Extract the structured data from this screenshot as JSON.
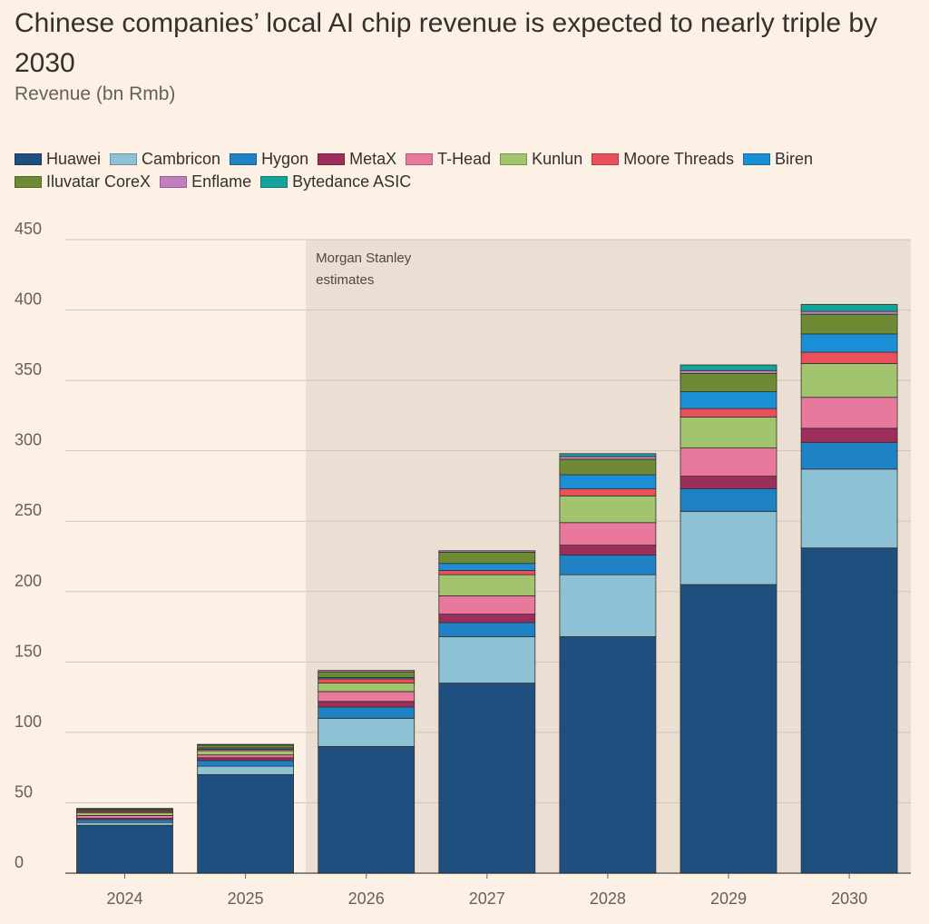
{
  "title": "Chinese companies’ local AI chip revenue is expected to nearly triple by 2030",
  "subtitle": "Revenue (bn Rmb)",
  "chart_data": {
    "type": "bar",
    "stacked": true,
    "categories": [
      "2024",
      "2025",
      "2026",
      "2027",
      "2028",
      "2029",
      "2030"
    ],
    "ylim": [
      0,
      450
    ],
    "yticks": [
      0,
      50,
      100,
      150,
      200,
      250,
      300,
      350,
      400,
      450
    ],
    "grid": true,
    "legend_position": "top",
    "annotation": {
      "text_lines": [
        "Morgan Stanley",
        "estimates"
      ],
      "shaded_from": "2026",
      "shaded_to": "2030"
    },
    "series": [
      {
        "name": "Huawei",
        "color": "#1e4f7f",
        "values": [
          34,
          70,
          90,
          135,
          168,
          205,
          231
        ]
      },
      {
        "name": "Cambricon",
        "color": "#8cc2d4",
        "values": [
          2,
          6,
          20,
          33,
          44,
          52,
          56
        ]
      },
      {
        "name": "Hygon",
        "color": "#1f82c4",
        "values": [
          2,
          4,
          8,
          10,
          14,
          16,
          19
        ]
      },
      {
        "name": "MetaX",
        "color": "#9b2e5b",
        "values": [
          1,
          2,
          4,
          6,
          7,
          9,
          10
        ]
      },
      {
        "name": "T-Head",
        "color": "#e8799c",
        "values": [
          2,
          2,
          7,
          13,
          16,
          20,
          22
        ]
      },
      {
        "name": "Kunlun",
        "color": "#a3c46e",
        "values": [
          2,
          3,
          6,
          15,
          19,
          22,
          24
        ]
      },
      {
        "name": "Moore Threads",
        "color": "#e8505b",
        "values": [
          1,
          1,
          3,
          3,
          5,
          6,
          8
        ]
      },
      {
        "name": "Biren",
        "color": "#1c8ed6",
        "values": [
          0.5,
          1,
          1,
          5,
          10,
          12,
          13
        ]
      },
      {
        "name": "Iluvatar CoreX",
        "color": "#6f8a34",
        "values": [
          1,
          2,
          4,
          8,
          11,
          13,
          14
        ]
      },
      {
        "name": "Enflame",
        "color": "#c17fc0",
        "values": [
          0.5,
          0.5,
          1,
          1,
          2,
          2,
          2
        ]
      },
      {
        "name": "Bytedance ASIC",
        "color": "#15a39a",
        "values": [
          0,
          0,
          0,
          0,
          2,
          4,
          5
        ]
      }
    ]
  }
}
